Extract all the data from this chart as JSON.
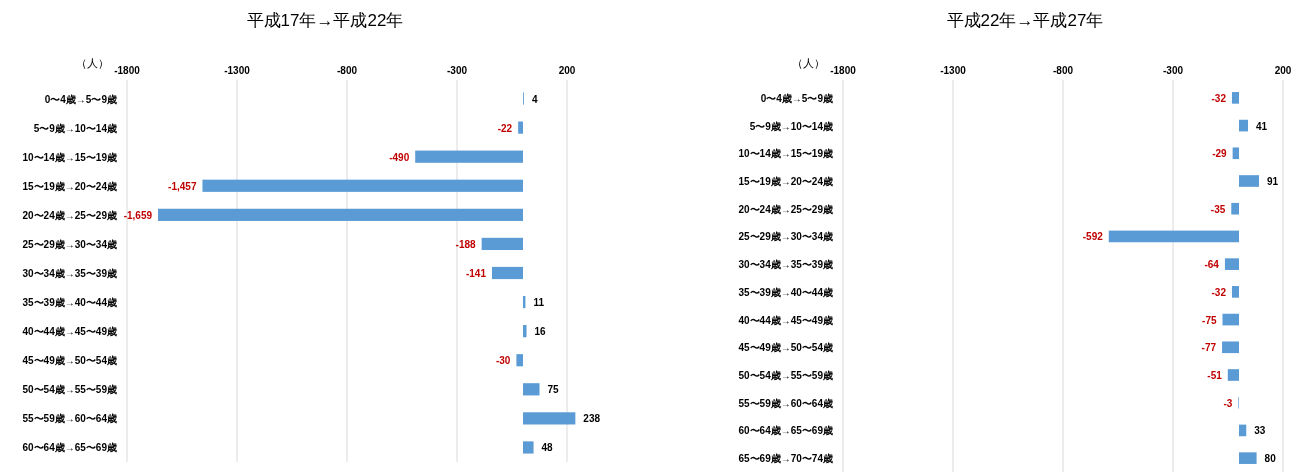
{
  "chart_data": [
    {
      "type": "bar",
      "orientation": "horizontal",
      "title": "平成17年→平成22年",
      "xlabel": "（人）",
      "categories": [
        "0〜4歳→5〜9歳",
        "5〜9歳→10〜14歳",
        "10〜14歳→15〜19歳",
        "15〜19歳→20〜24歳",
        "20〜24歳→25〜29歳",
        "25〜29歳→30〜34歳",
        "30〜34歳→35〜39歳",
        "35〜39歳→40〜44歳",
        "40〜44歳→45〜49歳",
        "45〜49歳→50〜54歳",
        "50〜54歳→55〜59歳",
        "55〜59歳→60〜64歳",
        "60〜64歳→65〜69歳"
      ],
      "values": [
        4,
        -22,
        -490,
        -1457,
        -1659,
        -188,
        -141,
        11,
        16,
        -30,
        75,
        238,
        48
      ],
      "value_labels": [
        "4",
        "-22",
        "-490",
        "-1,457",
        "-1,659",
        "-188",
        "-141",
        "11",
        "16",
        "-30",
        "75",
        "238",
        "48"
      ],
      "color": "#5b9bd5",
      "xlim": [
        -1800,
        250
      ],
      "xticks": [
        -1800,
        -1300,
        -800,
        -300,
        200
      ],
      "grid": "x"
    },
    {
      "type": "bar",
      "orientation": "horizontal",
      "title": "平成22年→平成27年",
      "xlabel": "（人）",
      "categories": [
        "0〜4歳→5〜9歳",
        "5〜9歳→10〜14歳",
        "10〜14歳→15〜19歳",
        "15〜19歳→20〜24歳",
        "20〜24歳→25〜29歳",
        "25〜29歳→30〜34歳",
        "30〜34歳→35〜39歳",
        "35〜39歳→40〜44歳",
        "40〜44歳→45〜49歳",
        "45〜49歳→50〜54歳",
        "50〜54歳→55〜59歳",
        "55〜59歳→60〜64歳",
        "60〜64歳→65〜69歳",
        "65〜69歳→70〜74歳"
      ],
      "values": [
        -32,
        41,
        -29,
        91,
        -35,
        -592,
        -64,
        -32,
        -75,
        -77,
        -51,
        -3,
        33,
        80
      ],
      "data_labels": true,
      "color": "#5b9bd5",
      "xlim": [
        -1800,
        200
      ],
      "xticks": [
        -1800,
        -1300,
        -800,
        -300,
        200
      ],
      "grid": "x"
    }
  ]
}
